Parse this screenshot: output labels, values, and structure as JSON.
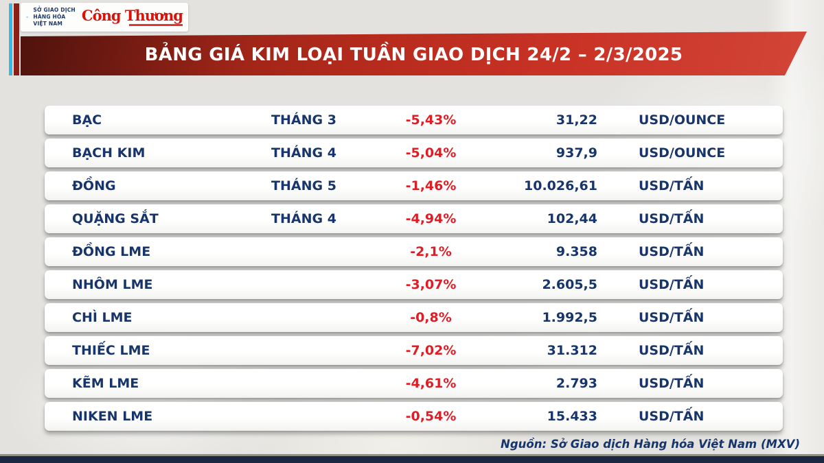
{
  "brand": {
    "mxv_name_lines": [
      "SỞ GIAO DỊCH",
      "HÀNG HÓA",
      "VIỆT NAM"
    ],
    "congthuong_logo": "Công Thương"
  },
  "banner": {
    "title": "BẢNG GIÁ KIM LOẠI TUẦN GIAO DỊCH 24/2 – 2/3/2025"
  },
  "table": {
    "rows": [
      {
        "name": "BẠC",
        "month": "THÁNG 3",
        "change": "-5,43%",
        "price": "31,22",
        "unit": "USD/OUNCE"
      },
      {
        "name": "BẠCH KIM",
        "month": "THÁNG 4",
        "change": "-5,04%",
        "price": "937,9",
        "unit": "USD/OUNCE"
      },
      {
        "name": "ĐỒNG",
        "month": "THÁNG 5",
        "change": "-1,46%",
        "price": "10.026,61",
        "unit": "USD/TẤN"
      },
      {
        "name": "QUẶNG SẮT",
        "month": "THÁNG 4",
        "change": "-4,94%",
        "price": "102,44",
        "unit": "USD/TẤN"
      },
      {
        "name": "ĐỒNG LME",
        "month": "",
        "change": "-2,1%",
        "price": "9.358",
        "unit": "USD/TẤN"
      },
      {
        "name": "NHÔM LME",
        "month": "",
        "change": "-3,07%",
        "price": "2.605,5",
        "unit": "USD/TẤN"
      },
      {
        "name": "CHÌ LME",
        "month": "",
        "change": "-0,8%",
        "price": "1.992,5",
        "unit": "USD/TẤN"
      },
      {
        "name": "THIẾC LME",
        "month": "",
        "change": "-7,02%",
        "price": "31.312",
        "unit": "USD/TẤN"
      },
      {
        "name": "KẼM LME",
        "month": "",
        "change": "-4,61%",
        "price": "2.793",
        "unit": "USD/TẤN"
      },
      {
        "name": "NIKEN LME",
        "month": "",
        "change": "-0,54%",
        "price": "15.433",
        "unit": "USD/TẤN"
      }
    ]
  },
  "footer": {
    "source": "Nguồn: Sở Giao dịch Hàng hóa Việt Nam (MXV)"
  },
  "colors": {
    "banner_red": "#b92c1e",
    "navy_text": "#17356b",
    "change_red": "#e01d24",
    "accent_cyan": "#35b9e6",
    "accent_dark_red": "#8c1f15",
    "bottom_bar_navy": "#1c2742"
  }
}
